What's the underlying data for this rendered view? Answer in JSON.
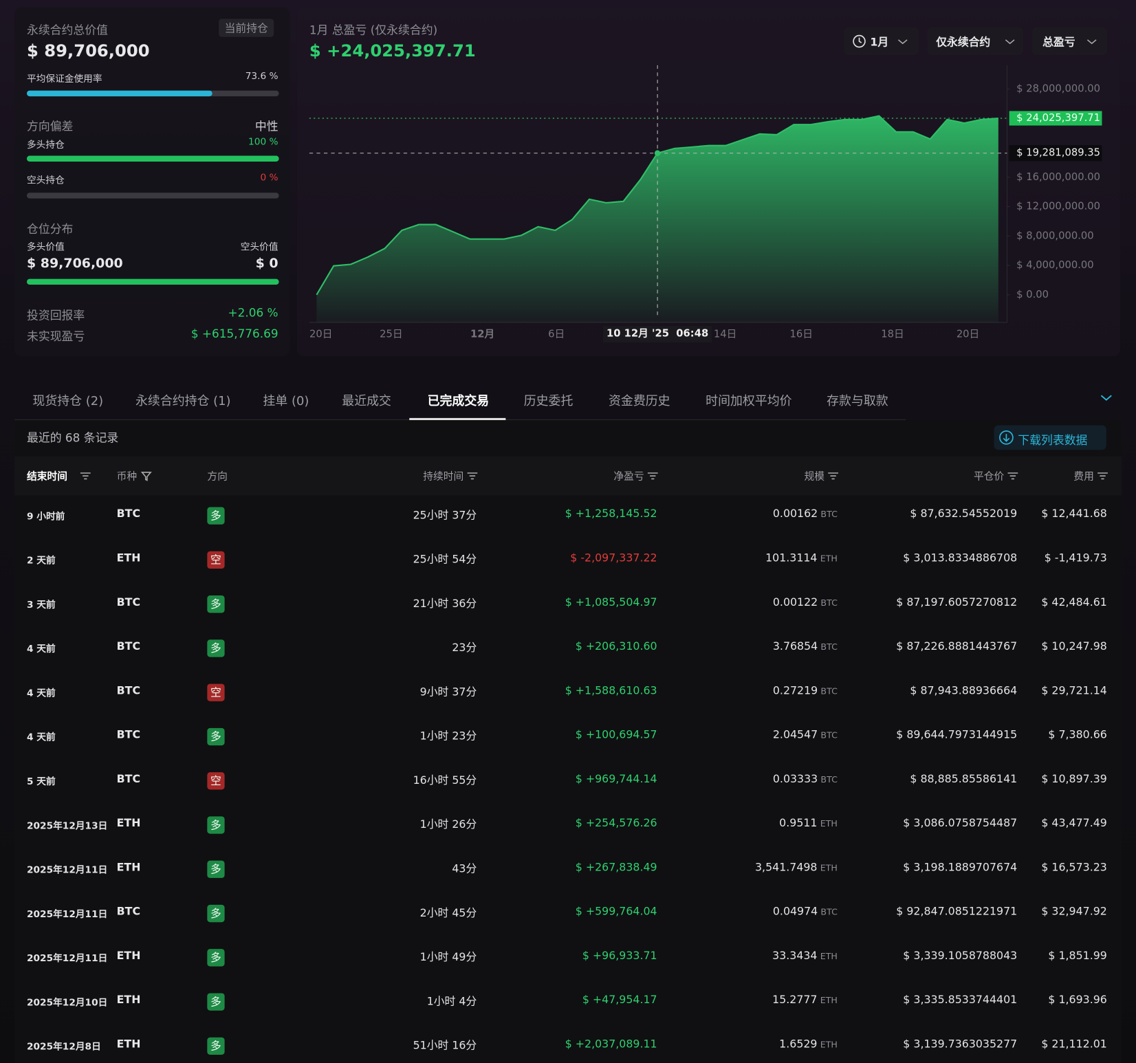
{
  "summary": {
    "title": "永续合约总价值",
    "badge": "当前持仓",
    "total": "$ 89,706,000",
    "margin_label": "平均保证金使用率",
    "margin": {
      "value": 73.6,
      "label": "73.6 %"
    },
    "bias_label": "方向偏差",
    "bias_value": "中性",
    "long_label": "多头持仓",
    "long_pct": {
      "value": 100,
      "label": "100 %"
    },
    "short_label": "空头持仓",
    "short_pct": {
      "value": 0,
      "label": "0 %"
    },
    "dist_label": "仓位分布",
    "long_value_label": "多头价值",
    "short_value_label": "空头价值",
    "long_value": "$ 89,706,000",
    "short_value": "$ 0",
    "roi_label": "投资回报率",
    "roi": "+2.06 %",
    "upnl_label": "未实现盈亏",
    "upnl": "$ +615,776.69"
  },
  "chart_data": {
    "type": "area",
    "title": "1月 总盈亏 (仅永续合约)",
    "headline": "$ +24,025,397.71",
    "controls": [
      "1月",
      "仅永续合约",
      "总盈亏"
    ],
    "color": "#2fbf68",
    "values": [
      0,
      3940000,
      4140000,
      5130000,
      6310000,
      8770000,
      9560000,
      9560000,
      8580000,
      7590000,
      7590000,
      7590000,
      8080000,
      9270000,
      8770000,
      10250000,
      13010000,
      12520000,
      12720000,
      15680000,
      19281089.35,
      19920000,
      20110000,
      20310000,
      20310000,
      21100000,
      21890000,
      21790000,
      23170000,
      23170000,
      23560000,
      23860000,
      23860000,
      24350000,
      22180000,
      22180000,
      21200000,
      23860000,
      23370000,
      23860000,
      24025397.71
    ],
    "ylim": [
      -3750000,
      31250000
    ],
    "yticks": [
      {
        "value": 0,
        "label": "$ 0.00"
      },
      {
        "value": 4000000,
        "label": "$ 4,000,000.00"
      },
      {
        "value": 8000000,
        "label": "$ 8,000,000.00"
      },
      {
        "value": 12000000,
        "label": "$ 12,000,000.00"
      },
      {
        "value": 16000000,
        "label": "$ 16,000,000.00"
      },
      {
        "value": 28000000,
        "label": "$ 28,000,000.00"
      }
    ],
    "xticks": [
      "20日",
      "25日",
      "12月",
      "6日",
      "14日",
      "16日",
      "18日",
      "20日"
    ],
    "last": {
      "value": 24025397.71,
      "label": "$ 24,025,397.71"
    },
    "hover": {
      "value": 19281089.35,
      "label": "$ 19,281,089.35",
      "time": "10 12月 '25  06:48"
    }
  },
  "tabs": {
    "items": [
      "现货持仓 (2)",
      "永续合约持仓 (1)",
      "挂单 (0)",
      "最近成交",
      "已完成交易",
      "历史委托",
      "资金费历史",
      "时间加权平均价",
      "存款与取款"
    ],
    "active": 4
  },
  "table": {
    "records": "最近的 68 条记录",
    "download": "下载列表数据",
    "columns": [
      "结束时间",
      "币种",
      "方向",
      "持续时间",
      "净盈亏",
      "规模",
      "平仓价",
      "费用"
    ],
    "rows": [
      {
        "cells": [
          "9 小时前",
          "BTC",
          "多",
          "25小时 37分",
          "$ +1,258,145.52",
          "0.00162",
          "BTC",
          "$ 87,632.54552019",
          "$ 12,441.68"
        ],
        "dir_color": "#1e8a45",
        "pnl_color": "#2fd06f"
      },
      {
        "cells": [
          "2 天前",
          "ETH",
          "空",
          "25小时 54分",
          "$ -2,097,337.22",
          "101.3114",
          "ETH",
          "$ 3,013.8334886708",
          "$ -1,419.73"
        ],
        "dir_color": "#a52828",
        "pnl_color": "#e23b3b"
      },
      {
        "cells": [
          "3 天前",
          "BTC",
          "多",
          "21小时 36分",
          "$ +1,085,504.97",
          "0.00122",
          "BTC",
          "$ 87,197.6057270812",
          "$ 42,484.61"
        ],
        "dir_color": "#1e8a45",
        "pnl_color": "#2fd06f"
      },
      {
        "cells": [
          "4 天前",
          "BTC",
          "多",
          "23分",
          "$ +206,310.60",
          "3.76854",
          "BTC",
          "$ 87,226.8881443767",
          "$ 10,247.98"
        ],
        "dir_color": "#1e8a45",
        "pnl_color": "#2fd06f"
      },
      {
        "cells": [
          "4 天前",
          "BTC",
          "空",
          "9小时 37分",
          "$ +1,588,610.63",
          "0.27219",
          "BTC",
          "$ 87,943.88936664",
          "$ 29,721.14"
        ],
        "dir_color": "#a52828",
        "pnl_color": "#2fd06f"
      },
      {
        "cells": [
          "4 天前",
          "BTC",
          "多",
          "1小时 23分",
          "$ +100,694.57",
          "2.04547",
          "BTC",
          "$ 89,644.7973144915",
          "$ 7,380.66"
        ],
        "dir_color": "#1e8a45",
        "pnl_color": "#2fd06f"
      },
      {
        "cells": [
          "5 天前",
          "BTC",
          "空",
          "16小时 55分",
          "$ +969,744.14",
          "0.03333",
          "BTC",
          "$ 88,885.85586141",
          "$ 10,897.39"
        ],
        "dir_color": "#a52828",
        "pnl_color": "#2fd06f"
      },
      {
        "cells": [
          "2025年12月13日",
          "ETH",
          "多",
          "1小时 26分",
          "$ +254,576.26",
          "0.9511",
          "ETH",
          "$ 3,086.0758754487",
          "$ 43,477.49"
        ],
        "dir_color": "#1e8a45",
        "pnl_color": "#2fd06f"
      },
      {
        "cells": [
          "2025年12月11日",
          "ETH",
          "多",
          "43分",
          "$ +267,838.49",
          "3,541.7498",
          "ETH",
          "$ 3,198.1889707674",
          "$ 16,573.23"
        ],
        "dir_color": "#1e8a45",
        "pnl_color": "#2fd06f"
      },
      {
        "cells": [
          "2025年12月11日",
          "BTC",
          "多",
          "2小时 45分",
          "$ +599,764.04",
          "0.04974",
          "BTC",
          "$ 92,847.0851221971",
          "$ 32,947.92"
        ],
        "dir_color": "#1e8a45",
        "pnl_color": "#2fd06f"
      },
      {
        "cells": [
          "2025年12月11日",
          "ETH",
          "多",
          "1小时 49分",
          "$ +96,933.71",
          "33.3434",
          "ETH",
          "$ 3,339.1058788043",
          "$ 1,851.99"
        ],
        "dir_color": "#1e8a45",
        "pnl_color": "#2fd06f"
      },
      {
        "cells": [
          "2025年12月10日",
          "ETH",
          "多",
          "1小时 4分",
          "$ +47,954.17",
          "15.2777",
          "ETH",
          "$ 3,335.8533744401",
          "$ 1,693.96"
        ],
        "dir_color": "#1e8a45",
        "pnl_color": "#2fd06f"
      },
      {
        "cells": [
          "2025年12月8日",
          "ETH",
          "多",
          "51小时 16分",
          "$ +2,037,089.11",
          "1.6529",
          "ETH",
          "$ 3,139.7363035277",
          "$ 21,112.01"
        ],
        "dir_color": "#1e8a45",
        "pnl_color": "#2fd06f"
      }
    ]
  }
}
